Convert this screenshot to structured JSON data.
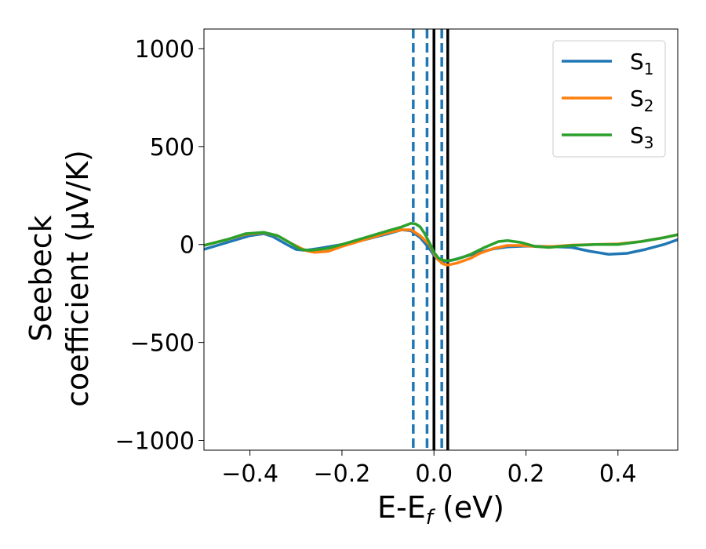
{
  "chart_data": {
    "type": "line",
    "xlabel_main": "E-E",
    "xlabel_sub": "f",
    "xlabel_unit": " (eV)",
    "ylabel_line1": "Seebeck",
    "ylabel_line2": "coefficient  (μV/K)",
    "xlim": [
      -0.5,
      0.53
    ],
    "ylim": [
      -1050,
      1100
    ],
    "x_ticks": [
      {
        "value": -0.4,
        "label": "−0.4"
      },
      {
        "value": -0.2,
        "label": "−0.2"
      },
      {
        "value": 0.0,
        "label": "0.0"
      },
      {
        "value": 0.2,
        "label": "0.2"
      },
      {
        "value": 0.4,
        "label": "0.4"
      }
    ],
    "y_ticks": [
      {
        "value": 1000,
        "label": "1000"
      },
      {
        "value": 500,
        "label": "500"
      },
      {
        "value": 0,
        "label": "0"
      },
      {
        "value": -500,
        "label": "−500"
      },
      {
        "value": -1000,
        "label": "−1000"
      }
    ],
    "legend_position": "top-right",
    "grid": false,
    "series": [
      {
        "name": "S",
        "subscript": "1",
        "color": "#1f77b4",
        "points": [
          [
            -0.5,
            -25
          ],
          [
            -0.45,
            10
          ],
          [
            -0.4,
            45
          ],
          [
            -0.37,
            55
          ],
          [
            -0.35,
            40
          ],
          [
            -0.32,
            0
          ],
          [
            -0.3,
            -25
          ],
          [
            -0.28,
            -30
          ],
          [
            -0.25,
            -20
          ],
          [
            -0.2,
            0
          ],
          [
            -0.15,
            25
          ],
          [
            -0.1,
            55
          ],
          [
            -0.07,
            75
          ],
          [
            -0.05,
            70
          ],
          [
            -0.03,
            35
          ],
          [
            -0.01,
            -20
          ],
          [
            0.0,
            -55
          ],
          [
            0.01,
            -80
          ],
          [
            0.02,
            -88
          ],
          [
            0.04,
            -80
          ],
          [
            0.07,
            -60
          ],
          [
            0.1,
            -40
          ],
          [
            0.13,
            -22
          ],
          [
            0.16,
            -12
          ],
          [
            0.2,
            -8
          ],
          [
            0.25,
            -10
          ],
          [
            0.3,
            -15
          ],
          [
            0.34,
            -35
          ],
          [
            0.38,
            -50
          ],
          [
            0.42,
            -45
          ],
          [
            0.46,
            -25
          ],
          [
            0.5,
            0
          ],
          [
            0.53,
            25
          ]
        ]
      },
      {
        "name": "S",
        "subscript": "2",
        "color": "#ff7f0e",
        "points": [
          [
            -0.5,
            -5
          ],
          [
            -0.45,
            25
          ],
          [
            -0.41,
            52
          ],
          [
            -0.37,
            60
          ],
          [
            -0.34,
            45
          ],
          [
            -0.31,
            5
          ],
          [
            -0.28,
            -30
          ],
          [
            -0.26,
            -40
          ],
          [
            -0.23,
            -35
          ],
          [
            -0.2,
            -10
          ],
          [
            -0.15,
            25
          ],
          [
            -0.1,
            60
          ],
          [
            -0.07,
            75
          ],
          [
            -0.05,
            75
          ],
          [
            -0.03,
            45
          ],
          [
            -0.01,
            0
          ],
          [
            0.0,
            -45
          ],
          [
            0.01,
            -80
          ],
          [
            0.02,
            -100
          ],
          [
            0.03,
            -105
          ],
          [
            0.05,
            -95
          ],
          [
            0.08,
            -70
          ],
          [
            0.1,
            -45
          ],
          [
            0.13,
            -20
          ],
          [
            0.16,
            -5
          ],
          [
            0.19,
            -5
          ],
          [
            0.22,
            -10
          ],
          [
            0.26,
            -10
          ],
          [
            0.3,
            -3
          ],
          [
            0.35,
            0
          ],
          [
            0.4,
            3
          ],
          [
            0.45,
            15
          ],
          [
            0.5,
            35
          ],
          [
            0.53,
            50
          ]
        ]
      },
      {
        "name": "S",
        "subscript": "3",
        "color": "#2ca02c",
        "points": [
          [
            -0.5,
            -5
          ],
          [
            -0.45,
            25
          ],
          [
            -0.41,
            55
          ],
          [
            -0.37,
            62
          ],
          [
            -0.34,
            45
          ],
          [
            -0.31,
            5
          ],
          [
            -0.29,
            -25
          ],
          [
            -0.27,
            -30
          ],
          [
            -0.23,
            -20
          ],
          [
            -0.2,
            0
          ],
          [
            -0.15,
            35
          ],
          [
            -0.1,
            70
          ],
          [
            -0.07,
            90
          ],
          [
            -0.05,
            108
          ],
          [
            -0.04,
            105
          ],
          [
            -0.03,
            90
          ],
          [
            -0.02,
            55
          ],
          [
            -0.01,
            10
          ],
          [
            0.0,
            -40
          ],
          [
            0.01,
            -70
          ],
          [
            0.02,
            -80
          ],
          [
            0.03,
            -83
          ],
          [
            0.05,
            -75
          ],
          [
            0.08,
            -50
          ],
          [
            0.11,
            -15
          ],
          [
            0.14,
            15
          ],
          [
            0.16,
            20
          ],
          [
            0.19,
            10
          ],
          [
            0.22,
            -10
          ],
          [
            0.25,
            -15
          ],
          [
            0.3,
            -5
          ],
          [
            0.35,
            0
          ],
          [
            0.4,
            0
          ],
          [
            0.45,
            15
          ],
          [
            0.5,
            35
          ],
          [
            0.53,
            50
          ]
        ]
      }
    ],
    "vertical_lines": [
      {
        "x": -0.045,
        "style": "dashed",
        "color": "#1f77b4"
      },
      {
        "x": -0.015,
        "style": "dashed",
        "color": "#1f77b4"
      },
      {
        "x": 0.017,
        "style": "dashed",
        "color": "#1f77b4"
      },
      {
        "x": 0.0,
        "style": "solid",
        "color": "#000000"
      },
      {
        "x": 0.03,
        "style": "solid",
        "color": "#000000"
      }
    ]
  }
}
